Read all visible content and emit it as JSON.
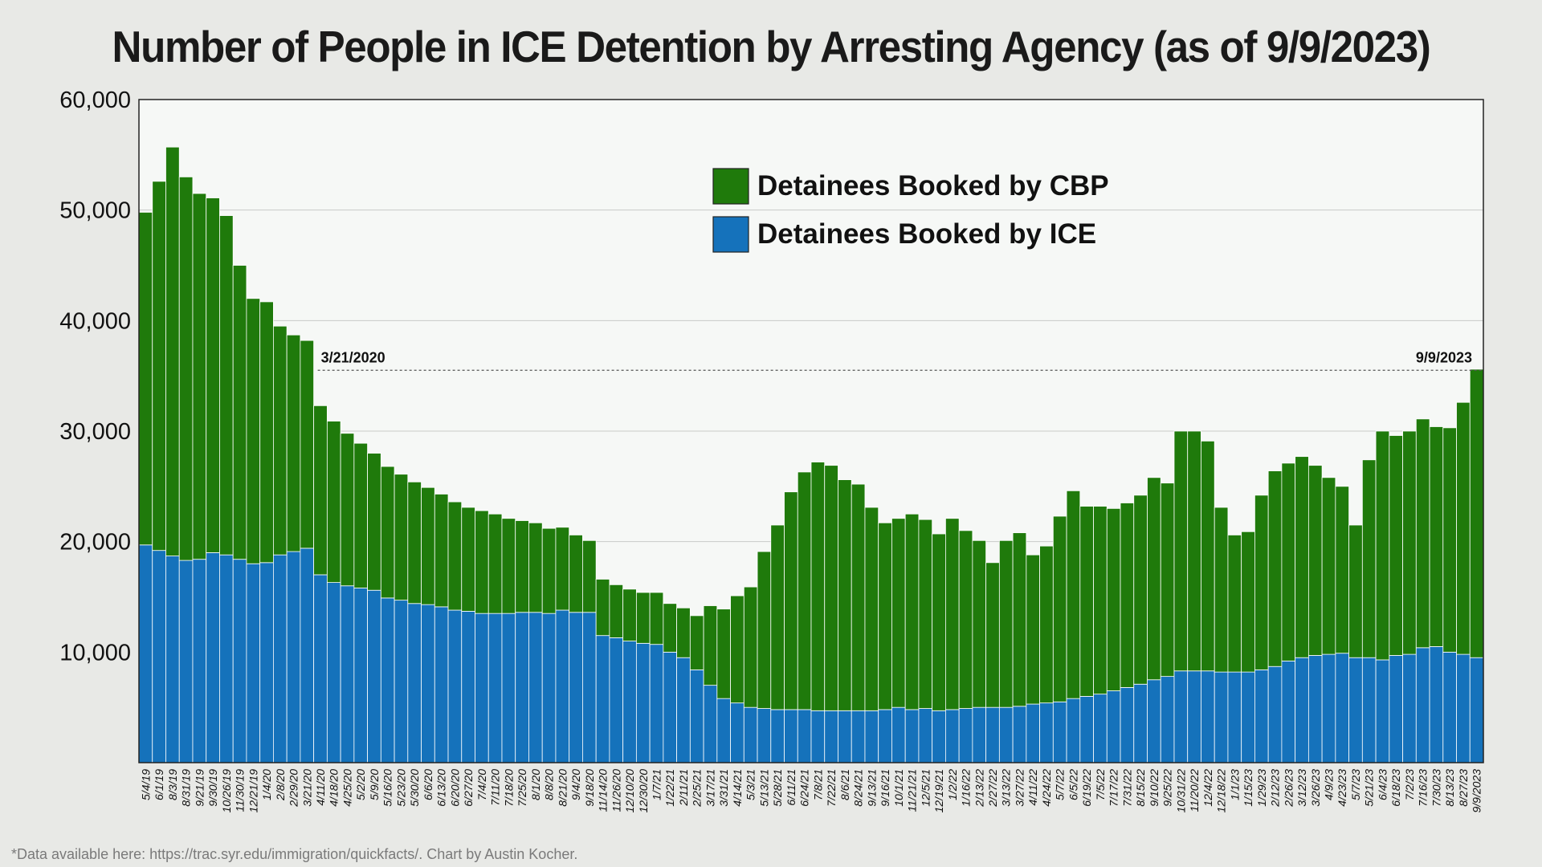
{
  "chart_data": {
    "type": "bar",
    "stacked": true,
    "title": "Number of People in ICE Detention by Arresting Agency (as of 9/9/2023)",
    "footnote": "*Data available here: https://trac.syr.edu/immigration/quickfacts/. Chart by Austin Kocher.",
    "ylim": [
      0,
      60000
    ],
    "yticks": [
      "10,000",
      "20,000",
      "30,000",
      "40,000",
      "50,000",
      "60,000"
    ],
    "grid": true,
    "legend_position": "top-center",
    "reference_line": {
      "value": 35500,
      "left_label": "3/21/2020",
      "right_label": "9/9/2023"
    },
    "colors": {
      "cbp": "#1f7a0b",
      "ice": "#1572bb",
      "plot_bg": "#f6f8f6",
      "page_bg": "#e8e9e6"
    },
    "categories": [
      "5/4/19",
      "6/1/19",
      "8/3/19",
      "8/31/19",
      "9/21/19",
      "9/30/19",
      "10/26/19",
      "11/30/19",
      "12/21/19",
      "1/4/20",
      "2/8/20",
      "2/29/20",
      "3/21/20",
      "4/11/20",
      "4/18/20",
      "4/25/20",
      "5/2/20",
      "5/9/20",
      "5/16/20",
      "5/23/20",
      "5/30/20",
      "6/6/20",
      "6/13/20",
      "6/20/20",
      "6/27/20",
      "7/4/20",
      "7/11/20",
      "7/18/20",
      "7/25/20",
      "8/1/20",
      "8/8/20",
      "8/21/20",
      "9/4/20",
      "9/18/20",
      "11/14/20",
      "11/26/20",
      "12/10/20",
      "12/30/20",
      "1/7/21",
      "1/22/21",
      "2/11/21",
      "2/25/21",
      "3/17/21",
      "3/31/21",
      "4/14/21",
      "5/3/21",
      "5/13/21",
      "5/28/21",
      "6/11/21",
      "6/24/21",
      "7/8/21",
      "7/22/21",
      "8/6/21",
      "8/24/21",
      "9/13/21",
      "9/16/21",
      "10/1/21",
      "11/21/21",
      "12/5/21",
      "12/19/21",
      "1/2/22",
      "1/16/22",
      "2/13/22",
      "2/27/22",
      "3/13/22",
      "3/27/22",
      "4/11/22",
      "4/24/22",
      "5/7/22",
      "6/5/22",
      "6/19/22",
      "7/5/22",
      "7/17/22",
      "7/31/22",
      "8/15/22",
      "9/10/22",
      "9/25/22",
      "10/31/22",
      "11/20/22",
      "12/4/22",
      "12/18/22",
      "1/1/23",
      "1/15/23",
      "1/29/23",
      "2/12/23",
      "2/26/23",
      "3/12/23",
      "3/26/23",
      "4/9/23",
      "4/23/23",
      "5/7/23",
      "5/21/23",
      "6/4/23",
      "6/18/23",
      "7/2/23",
      "7/16/23",
      "7/30/23",
      "8/13/23",
      "8/27/23",
      "9/9/2023"
    ],
    "series": [
      {
        "name": "Detainees Booked by CBP",
        "values": [
          30100,
          33400,
          37000,
          34700,
          33100,
          32100,
          30700,
          26600,
          24000,
          23600,
          20700,
          19600,
          18800,
          15300,
          14600,
          13800,
          13100,
          12400,
          11900,
          11400,
          11000,
          10600,
          10200,
          9800,
          9400,
          9300,
          9000,
          8600,
          8300,
          8100,
          7700,
          7500,
          7000,
          6500,
          5100,
          4800,
          4700,
          4600,
          4700,
          4400,
          4500,
          4900,
          7200,
          8100,
          9700,
          10900,
          14200,
          16700,
          19700,
          21500,
          22500,
          22200,
          20900,
          20500,
          18400,
          16900,
          17100,
          17700,
          17100,
          16000,
          17300,
          16100,
          15100,
          13100,
          15100,
          15700,
          13500,
          14200,
          16800,
          18800,
          17200,
          17000,
          16500,
          16700,
          17100,
          18300,
          17500,
          21700,
          21700,
          20800,
          14900,
          12400,
          12700,
          15800,
          17700,
          17900,
          18200,
          17200,
          16000,
          15100,
          12000,
          17900,
          20700,
          19900,
          20200,
          20700,
          19900,
          20300,
          22800,
          26100
        ]
      },
      {
        "name": "Detainees Booked by ICE",
        "values": [
          19700,
          19200,
          18700,
          18300,
          18400,
          19000,
          18800,
          18400,
          18000,
          18100,
          18800,
          19100,
          19400,
          17000,
          16300,
          16000,
          15800,
          15600,
          14900,
          14700,
          14400,
          14300,
          14100,
          13800,
          13700,
          13500,
          13500,
          13500,
          13600,
          13600,
          13500,
          13800,
          13600,
          13600,
          11500,
          11300,
          11000,
          10800,
          10700,
          10000,
          9500,
          8400,
          7000,
          5800,
          5400,
          5000,
          4900,
          4800,
          4800,
          4800,
          4700,
          4700,
          4700,
          4700,
          4700,
          4800,
          5000,
          4800,
          4900,
          4700,
          4800,
          4900,
          5000,
          5000,
          5000,
          5100,
          5300,
          5400,
          5500,
          5800,
          6000,
          6200,
          6500,
          6800,
          7100,
          7500,
          7800,
          8300,
          8300,
          8300,
          8200,
          8200,
          8200,
          8400,
          8700,
          9200,
          9500,
          9700,
          9800,
          9900,
          9500,
          9500,
          9300,
          9700,
          9800,
          10400,
          10500,
          10000,
          9800,
          9500
        ]
      }
    ]
  }
}
